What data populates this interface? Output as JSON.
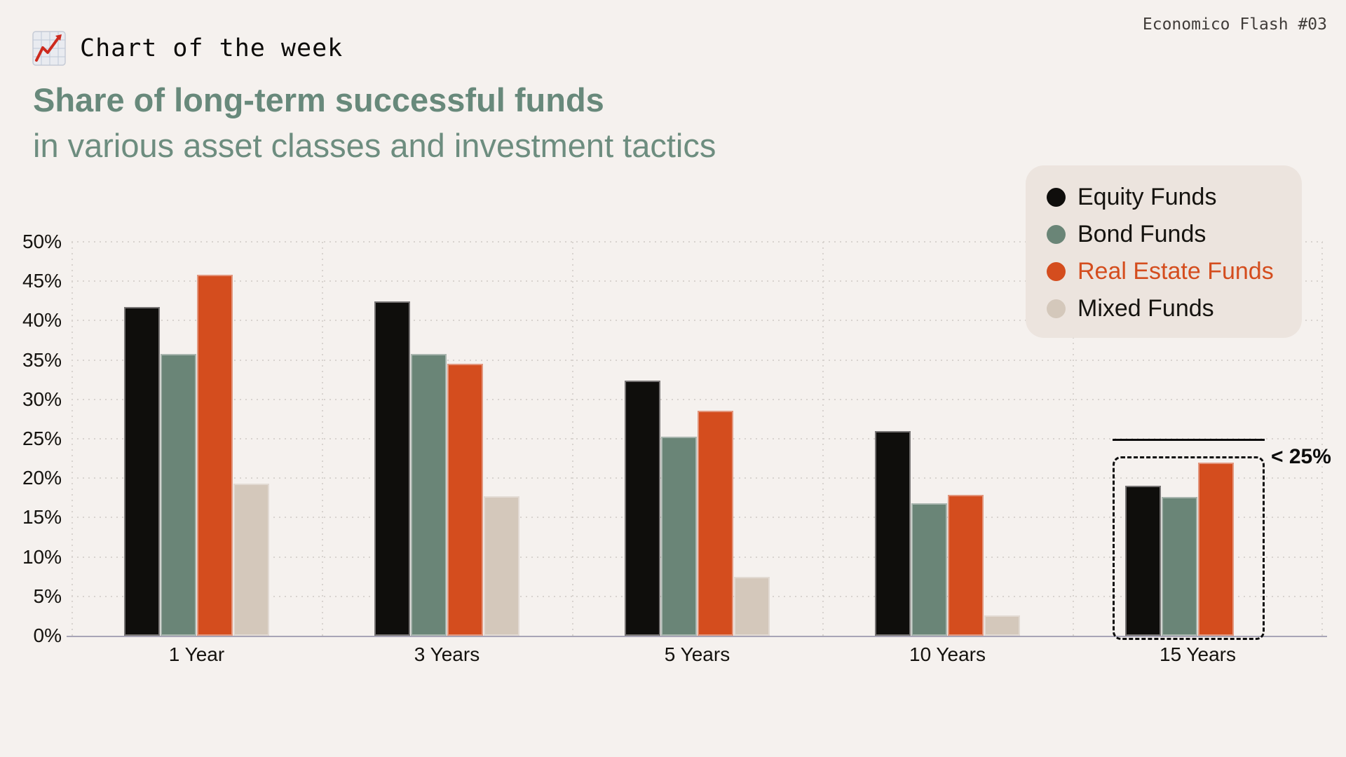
{
  "header": {
    "kicker": "Chart of the week",
    "kicker_icon": "chart-increasing-emoji",
    "brand_badge": "Economico Flash #03"
  },
  "title": {
    "line1": "Share of long-term successful funds",
    "line2": "in various asset classes and investment tactics"
  },
  "colors": {
    "page_background": "#f5f1ee",
    "legend_background": "#ece4de",
    "title_green": "#68897b",
    "equity": "#0f0e0c",
    "bond": "#6a8577",
    "real_estate": "#d44d1e",
    "mixed": "#d4c8bb",
    "annotation": "#0c0c0c",
    "axis_line": "#a8a5b6",
    "gridline": "#d8d3cf"
  },
  "legend": {
    "items": [
      {
        "label": "Equity Funds",
        "color_key": "equity",
        "label_color": "#15130f"
      },
      {
        "label": "Bond Funds",
        "color_key": "bond",
        "label_color": "#15130f"
      },
      {
        "label": "Real Estate Funds",
        "color_key": "real_estate",
        "label_color": "#d44d1e"
      },
      {
        "label": "Mixed Funds",
        "color_key": "mixed",
        "label_color": "#15130f"
      }
    ]
  },
  "chart_data": {
    "type": "bar",
    "categories": [
      "1 Year",
      "3 Years",
      "5 Years",
      "10 Years",
      "15 Years"
    ],
    "series": [
      {
        "name": "Equity Funds",
        "color_key": "equity",
        "values": [
          41.7,
          42.4,
          32.4,
          26.0,
          19.0
        ]
      },
      {
        "name": "Bond Funds",
        "color_key": "bond",
        "values": [
          35.8,
          35.8,
          25.3,
          16.8,
          17.6
        ]
      },
      {
        "name": "Real Estate Funds",
        "color_key": "real_estate",
        "values": [
          45.8,
          34.5,
          28.6,
          17.9,
          22.0
        ]
      },
      {
        "name": "Mixed Funds",
        "color_key": "mixed",
        "values": [
          19.3,
          17.7,
          7.5,
          2.6,
          null
        ]
      }
    ],
    "ylabel": "",
    "xlabel": "",
    "ylim": [
      0,
      50
    ],
    "y_tick_step": 5,
    "y_tick_suffix": "%",
    "grid": true,
    "legend_position": "top-right",
    "annotation": {
      "label": "< 25%",
      "category_index": 4,
      "line_level_pct": 25,
      "style": "solid line at 25% with dashed rounded box around the 15 Years bars"
    }
  }
}
